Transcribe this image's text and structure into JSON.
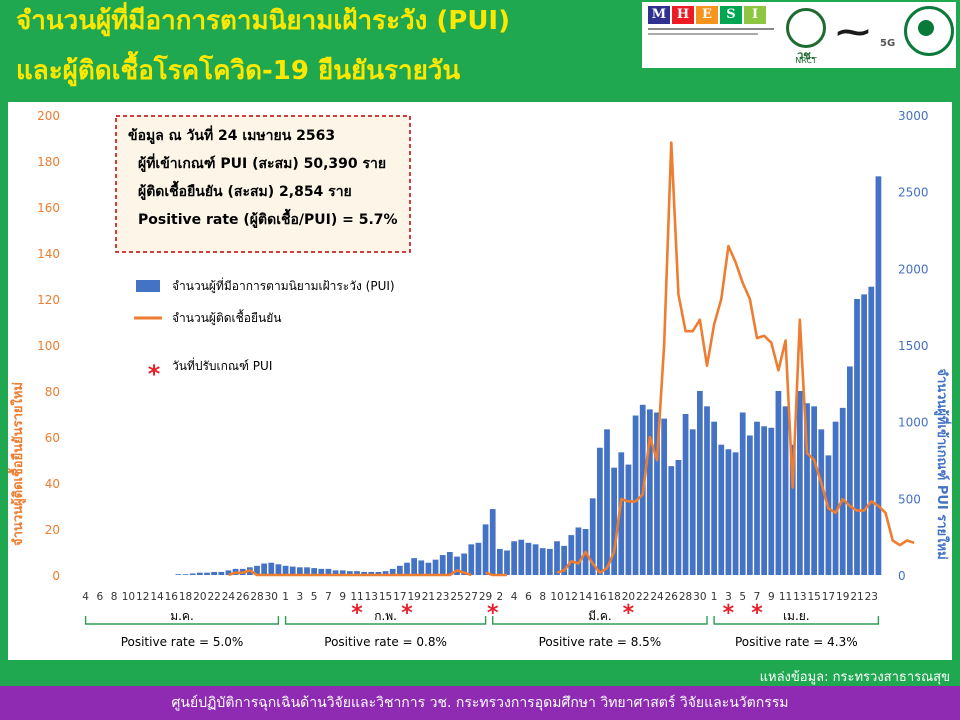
{
  "header": {
    "title_line1": "จำนวนผู้ที่มีอาการตามนิยามเฝ้าระวัง (PUI)",
    "title_line2": "และผู้ติดเชื้อโรคโควิด-19 ยืนยันรายวัน",
    "logo_mhesi_letters": [
      "M",
      "H",
      "E",
      "S",
      "I"
    ],
    "logo_nrct_text": "วช.",
    "logo_nrct_sub": "NRCT",
    "logo_5g_text": "5G"
  },
  "colors": {
    "background": "#1fa84f",
    "title": "#ffe800",
    "bar": "#4472c4",
    "line": "#ed7d31",
    "star": "#e8202b",
    "footer": "#8f2bb3",
    "right_axis": "#4472c4",
    "left_axis": "#ed7d31"
  },
  "info_box": {
    "line1": "ข้อมูล ณ วันที่ 24 เมษายน 2563",
    "line2": "ผู้ที่เข้าเกณฑ์ PUI (สะสม) 50,390 ราย",
    "line3": "ผู้ติดเชื้อยืนยัน (สะสม) 2,854 ราย",
    "line4": "Positive rate (ผู้ติดเชื้อ/PUI) = 5.7%"
  },
  "legend": {
    "bar_label": "จำนวนผู้ที่มีอาการตามนิยามเฝ้าระวัง (PUI)",
    "line_label": "จำนวนผู้ติดเชื้อยืนยัน",
    "star_label": "วันที่ปรับเกณฑ์ PUI"
  },
  "months": [
    {
      "label": "ม.ค.",
      "positive_rate": "Positive rate  = 5.0%"
    },
    {
      "label": "ก.พ.",
      "positive_rate": "Positive rate  = 0.8%"
    },
    {
      "label": "มี.ค.",
      "positive_rate": "Positive rate  = 8.5%"
    },
    {
      "label": "เม.ย.",
      "positive_rate": "Positive rate  = 4.3%"
    }
  ],
  "source": "แหล่งข้อมูล: กระทรวงสาธารณสุข",
  "footer": "ศูนย์ปฏิบัติการฉุกเฉินด้านวิจัยและวิชาการ  วช.  กระทรวงการอุดมศึกษา วิทยาศาสตร์ วิจัยและนวัตกรรม",
  "chart_data": {
    "type": "bar",
    "title": "",
    "ylabel_left": "จำนวนผู้ติดเชื้อยืนยันรายใหม่",
    "ylabel_right": "จำนวนผู้ที่เข้าเกณฑ์ PUI รายใหม่",
    "ylim_left": [
      0,
      200
    ],
    "ylim_right": [
      0,
      3000
    ],
    "yticks_left": [
      0,
      20,
      40,
      60,
      80,
      100,
      120,
      140,
      160,
      180,
      200
    ],
    "yticks_right": [
      0,
      500,
      1000,
      1500,
      2000,
      2500,
      3000
    ],
    "grid": false,
    "legend_position": "top-left",
    "start_date": "2020-01-04",
    "x_tick_labels": [
      "4",
      "6",
      "8",
      "10",
      "12",
      "14",
      "16",
      "18",
      "20",
      "22",
      "24",
      "26",
      "28",
      "30",
      "1",
      "3",
      "5",
      "7",
      "9",
      "11",
      "13",
      "15",
      "17",
      "19",
      "21",
      "23",
      "25",
      "27",
      "29",
      "2",
      "4",
      "6",
      "8",
      "10",
      "12",
      "14",
      "16",
      "18",
      "20",
      "22",
      "24",
      "26",
      "28",
      "30",
      "1",
      "3",
      "5",
      "7",
      "9",
      "11",
      "13",
      "15",
      "17",
      "19",
      "21",
      "23"
    ],
    "series": [
      {
        "name": "จำนวนผู้ที่มีอาการตามนิยามเฝ้าระวัง (PUI)",
        "axis": "right",
        "values": [
          0,
          0,
          0,
          0,
          0,
          0,
          0,
          0,
          0,
          0,
          0,
          0,
          0,
          5,
          5,
          10,
          15,
          15,
          20,
          20,
          30,
          40,
          40,
          50,
          60,
          75,
          80,
          70,
          60,
          55,
          50,
          50,
          45,
          40,
          40,
          30,
          30,
          25,
          25,
          20,
          20,
          20,
          25,
          40,
          60,
          80,
          110,
          95,
          80,
          100,
          130,
          150,
          120,
          140,
          200,
          210,
          330,
          430,
          170,
          160,
          220,
          230,
          210,
          200,
          175,
          170,
          220,
          190,
          260,
          310,
          300,
          500,
          830,
          950,
          700,
          800,
          720,
          1040,
          1110,
          1080,
          1060,
          1020,
          710,
          750,
          1050,
          950,
          1200,
          1100,
          1000,
          850,
          820,
          800,
          1060,
          910,
          1000,
          970,
          960,
          1200,
          1100,
          850,
          1200,
          1120,
          1100,
          950,
          780,
          1000,
          1090,
          1360,
          1800,
          1830,
          1880,
          2600
        ]
      },
      {
        "name": "จำนวนผู้ติดเชื้อยืนยัน",
        "axis": "left",
        "values": [
          null,
          null,
          null,
          null,
          null,
          null,
          null,
          null,
          null,
          null,
          null,
          null,
          null,
          null,
          null,
          null,
          null,
          null,
          null,
          null,
          0,
          1,
          1,
          2,
          0,
          0,
          0,
          0,
          0,
          0,
          0,
          0,
          0,
          0,
          0,
          0,
          0,
          0,
          0,
          0,
          0,
          0,
          0,
          0,
          0,
          0,
          0,
          0,
          0,
          0,
          0,
          0,
          2,
          1,
          0,
          null,
          1,
          0,
          0,
          0,
          null,
          null,
          null,
          null,
          null,
          null,
          1,
          2,
          6,
          5,
          10,
          5,
          1,
          3,
          10,
          33,
          32,
          32,
          35,
          60,
          50,
          100,
          188,
          122,
          106,
          106,
          111,
          91,
          109,
          120,
          143,
          136,
          127,
          120,
          103,
          104,
          101,
          89,
          102,
          38,
          111,
          53,
          50,
          40,
          29,
          27,
          33,
          30,
          28,
          28,
          32,
          30,
          27,
          15,
          13,
          15,
          14
        ]
      }
    ],
    "pui_adjustment_dates": [
      "11 ก.พ.",
      "18 ก.พ.",
      "1 มี.ค.",
      "20 มี.ค.",
      "3 เม.ย.",
      "7 เม.ย."
    ]
  }
}
